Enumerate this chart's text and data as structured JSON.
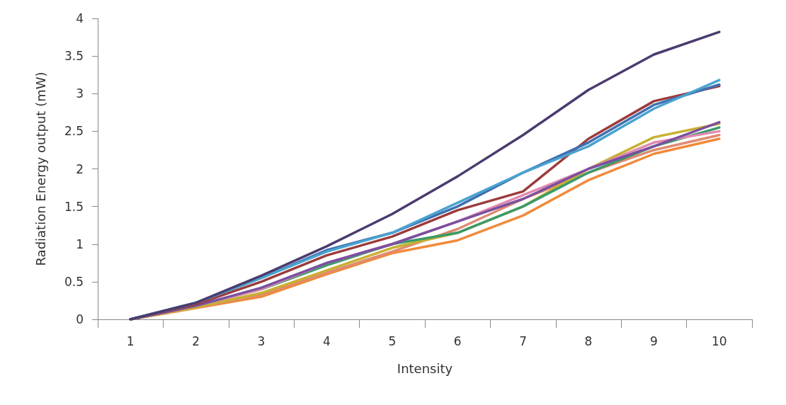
{
  "chart_data": {
    "type": "line",
    "xlabel": "Intensity",
    "ylabel": "Radiation Energy output (mW)",
    "categories": [
      "1",
      "2",
      "3",
      "4",
      "5",
      "6",
      "7",
      "8",
      "9",
      "10"
    ],
    "ylim": [
      0,
      4
    ],
    "yticks": [
      0,
      0.5,
      1,
      1.5,
      2,
      2.5,
      3,
      3.5,
      4
    ],
    "grid": false,
    "marker": "none",
    "line_style": "solid",
    "series": [
      {
        "color": "#f08a3a",
        "values": [
          0,
          0.15,
          0.3,
          0.6,
          0.88,
          1.05,
          1.38,
          1.85,
          2.2,
          2.4
        ]
      },
      {
        "color": "#e08a70",
        "values": [
          0,
          0.16,
          0.33,
          0.62,
          0.9,
          1.2,
          1.6,
          1.95,
          2.25,
          2.45
        ]
      },
      {
        "color": "#c8b030",
        "values": [
          0,
          0.16,
          0.35,
          0.65,
          0.95,
          1.15,
          1.5,
          2.0,
          2.42,
          2.6
        ]
      },
      {
        "color": "#3a9a6a",
        "values": [
          0,
          0.18,
          0.4,
          0.72,
          1.0,
          1.15,
          1.5,
          1.95,
          2.3,
          2.55
        ]
      },
      {
        "color": "#e08ab0",
        "values": [
          0,
          0.18,
          0.4,
          0.75,
          1.0,
          1.3,
          1.65,
          2.0,
          2.35,
          2.5
        ]
      },
      {
        "color": "#7a4fa0",
        "values": [
          0,
          0.18,
          0.42,
          0.75,
          1.0,
          1.3,
          1.6,
          2.0,
          2.3,
          2.62
        ]
      },
      {
        "color": "#9c3b3b",
        "values": [
          0,
          0.2,
          0.5,
          0.85,
          1.1,
          1.45,
          1.7,
          2.4,
          2.9,
          3.1
        ]
      },
      {
        "color": "#3f6fb0",
        "values": [
          0,
          0.22,
          0.55,
          0.92,
          1.15,
          1.5,
          1.95,
          2.35,
          2.85,
          3.12
        ]
      },
      {
        "color": "#4aa3d0",
        "values": [
          0,
          0.22,
          0.55,
          0.9,
          1.15,
          1.55,
          1.95,
          2.3,
          2.8,
          3.18
        ]
      },
      {
        "color": "#4b3b6e",
        "values": [
          0,
          0.22,
          0.58,
          0.97,
          1.4,
          1.9,
          2.45,
          3.05,
          3.52,
          3.82
        ]
      }
    ]
  }
}
